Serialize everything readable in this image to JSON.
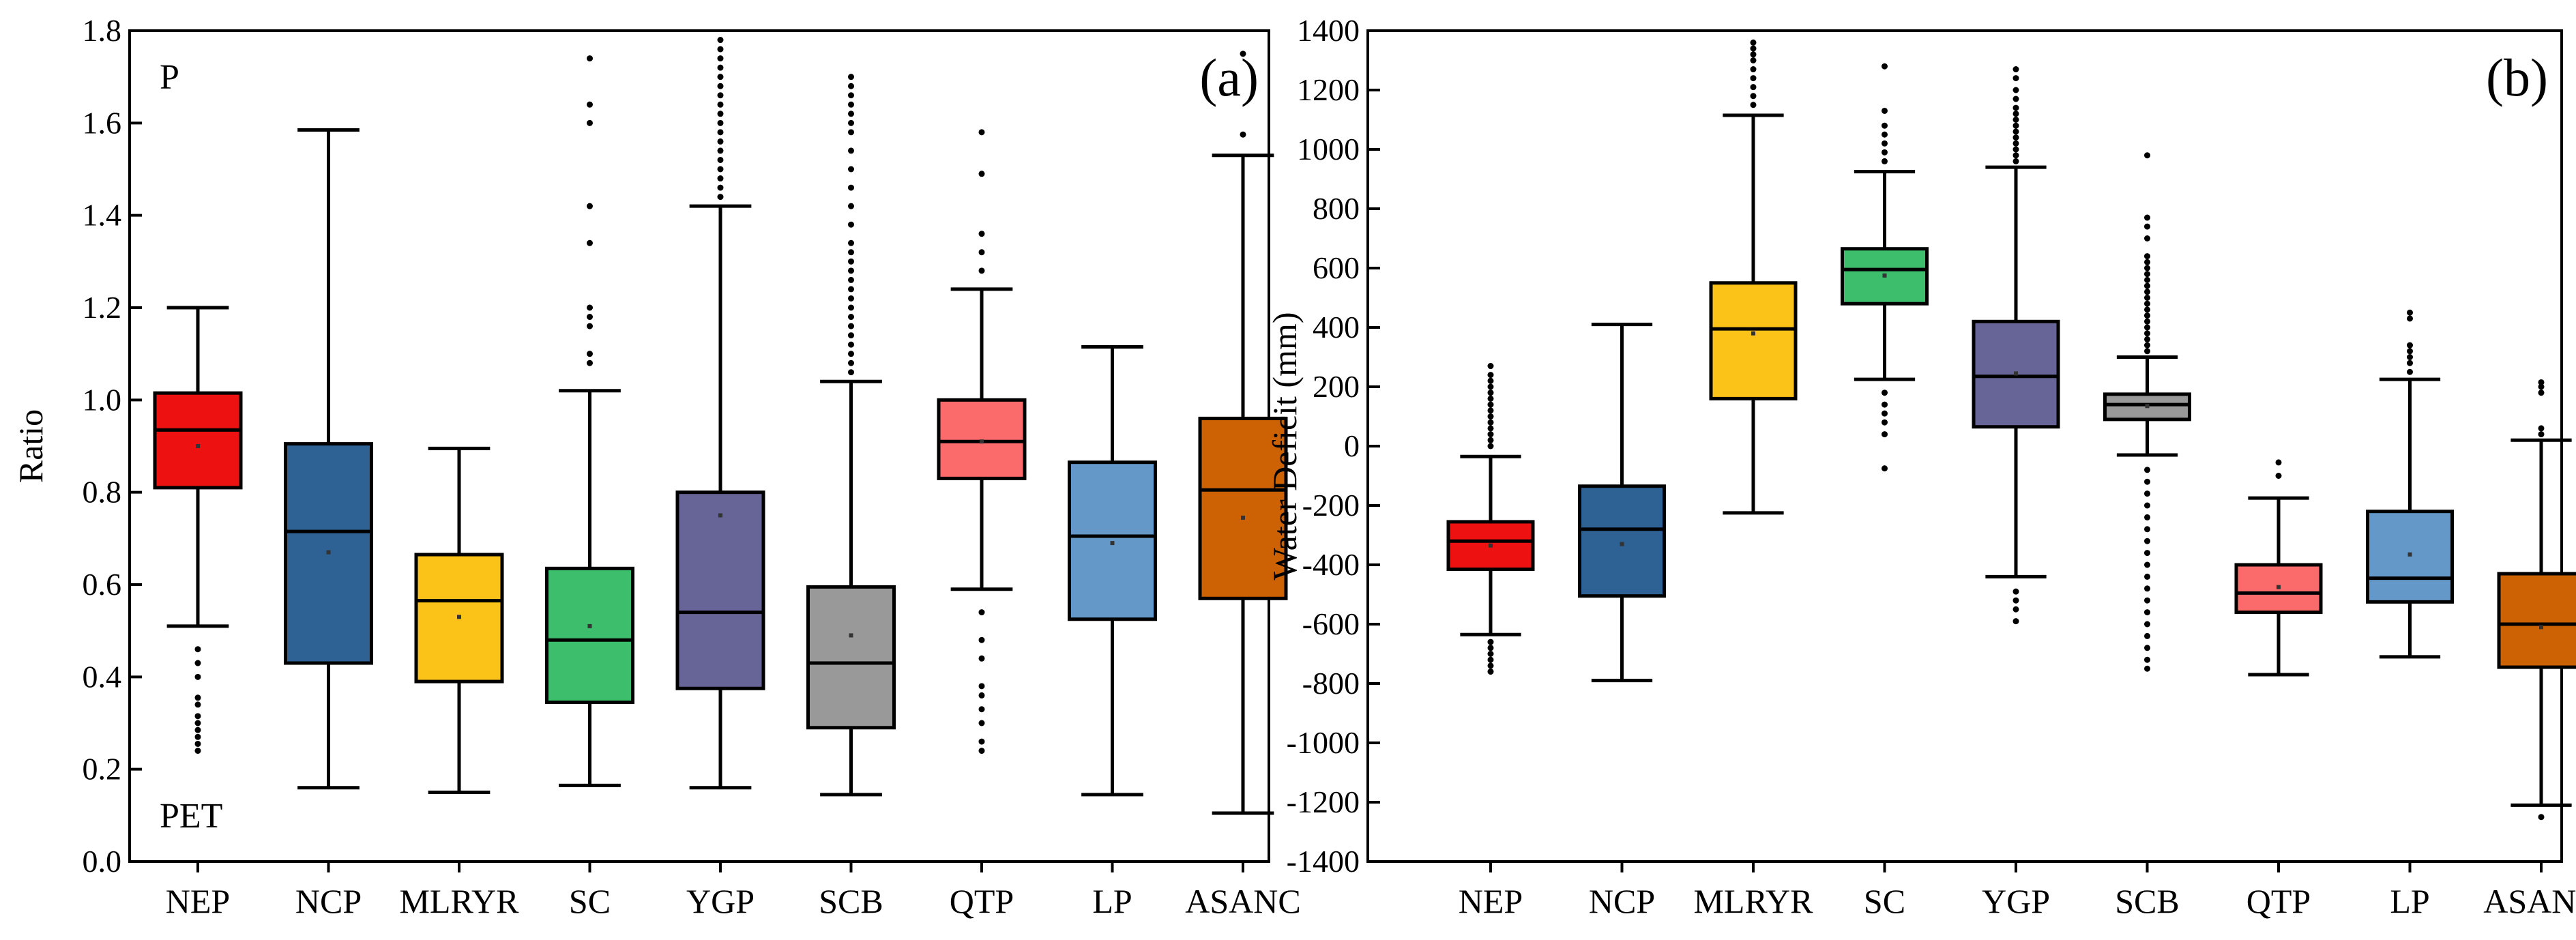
{
  "chart_data": [
    {
      "type": "box",
      "panel_label": "(a)",
      "title": "",
      "xlabel": "",
      "ylabel": "Ratio",
      "top_annotation": "P",
      "bottom_annotation": "PET",
      "ylim": [
        0.0,
        1.8
      ],
      "yticks": [
        0.0,
        0.2,
        0.4,
        0.6,
        0.8,
        1.0,
        1.2,
        1.4,
        1.6,
        1.8
      ],
      "ytick_labels": [
        "0.0",
        "0.2",
        "0.4",
        "0.6",
        "0.8",
        "1.0",
        "1.2",
        "1.4",
        "1.6",
        "1.8"
      ],
      "grid": false,
      "categories": [
        "NEP",
        "NCP",
        "MLRYR",
        "SC",
        "YGP",
        "SCB",
        "QTP",
        "LP",
        "ASANC"
      ],
      "boxes": [
        {
          "category": "NEP",
          "whisker_low": 0.51,
          "q1": 0.81,
          "median": 0.935,
          "q3": 1.015,
          "whisker_high": 1.2,
          "mean": 0.9,
          "color": "#ee1111",
          "outliers": [
            0.24,
            0.255,
            0.27,
            0.285,
            0.3,
            0.315,
            0.34,
            0.355,
            0.4,
            0.43,
            0.46
          ]
        },
        {
          "category": "NCP",
          "whisker_low": 0.16,
          "q1": 0.43,
          "median": 0.715,
          "q3": 0.905,
          "whisker_high": 1.585,
          "mean": 0.67,
          "color": "#2e6194",
          "outliers": []
        },
        {
          "category": "MLRYR",
          "whisker_low": 0.15,
          "q1": 0.39,
          "median": 0.565,
          "q3": 0.665,
          "whisker_high": 0.895,
          "mean": 0.53,
          "color": "#fbc218",
          "outliers": []
        },
        {
          "category": "SC",
          "whisker_low": 0.165,
          "q1": 0.345,
          "median": 0.48,
          "q3": 0.635,
          "whisker_high": 1.02,
          "mean": 0.51,
          "color": "#3dbe6c",
          "outliers": [
            1.08,
            1.1,
            1.16,
            1.18,
            1.2,
            1.34,
            1.42,
            1.6,
            1.64,
            1.74
          ]
        },
        {
          "category": "YGP",
          "whisker_low": 0.16,
          "q1": 0.375,
          "median": 0.54,
          "q3": 0.8,
          "whisker_high": 1.42,
          "mean": 0.75,
          "color": "#676597",
          "outliers": [
            1.44,
            1.46,
            1.48,
            1.5,
            1.52,
            1.54,
            1.56,
            1.58,
            1.6,
            1.62,
            1.64,
            1.66,
            1.68,
            1.7,
            1.72,
            1.74,
            1.76,
            1.78
          ]
        },
        {
          "category": "SCB",
          "whisker_low": 0.145,
          "q1": 0.29,
          "median": 0.43,
          "q3": 0.595,
          "whisker_high": 1.04,
          "mean": 0.49,
          "color": "#999999",
          "outliers": [
            1.06,
            1.08,
            1.1,
            1.12,
            1.14,
            1.16,
            1.18,
            1.2,
            1.22,
            1.24,
            1.26,
            1.28,
            1.3,
            1.32,
            1.34,
            1.38,
            1.42,
            1.46,
            1.5,
            1.54,
            1.58,
            1.6,
            1.62,
            1.64,
            1.66,
            1.68,
            1.7
          ]
        },
        {
          "category": "QTP",
          "whisker_low": 0.59,
          "q1": 0.83,
          "median": 0.91,
          "q3": 1.0,
          "whisker_high": 1.24,
          "mean": 0.91,
          "color": "#fb6b6b",
          "outliers": [
            0.24,
            0.26,
            0.3,
            0.33,
            0.36,
            0.38,
            0.44,
            0.48,
            0.54,
            1.28,
            1.32,
            1.36,
            1.49,
            1.58
          ]
        },
        {
          "category": "LP",
          "whisker_low": 0.145,
          "q1": 0.525,
          "median": 0.705,
          "q3": 0.865,
          "whisker_high": 1.115,
          "mean": 0.69,
          "color": "#6398c9",
          "outliers": []
        },
        {
          "category": "ASANC",
          "whisker_low": 0.105,
          "q1": 0.57,
          "median": 0.805,
          "q3": 0.96,
          "whisker_high": 1.53,
          "mean": 0.745,
          "color": "#cc6204",
          "outliers": [
            1.575,
            1.75
          ]
        }
      ]
    },
    {
      "type": "box",
      "panel_label": "(b)",
      "title": "",
      "xlabel": "",
      "ylabel": "Water Deficit (mm)",
      "ylim": [
        -1400,
        1400
      ],
      "yticks": [
        -1400,
        -1200,
        -1000,
        -800,
        -600,
        -400,
        -200,
        0,
        200,
        400,
        600,
        800,
        1000,
        1200,
        1400
      ],
      "ytick_labels": [
        "-1400",
        "-1200",
        "-1000",
        "-800",
        "-600",
        "-400",
        "-200",
        "0",
        "200",
        "400",
        "600",
        "800",
        "1000",
        "1200",
        "1400"
      ],
      "grid": false,
      "categories": [
        "NEP",
        "NCP",
        "MLRYR",
        "SC",
        "YGP",
        "SCB",
        "QTP",
        "LP",
        "ASANC"
      ],
      "boxes": [
        {
          "category": "NEP",
          "whisker_low": -635,
          "q1": -415,
          "median": -320,
          "q3": -255,
          "whisker_high": -35,
          "mean": -335,
          "color": "#ee1111",
          "outliers": [
            -760,
            -740,
            -720,
            -700,
            -680,
            -660,
            0,
            20,
            40,
            60,
            80,
            100,
            120,
            140,
            160,
            180,
            200,
            220,
            240,
            270
          ]
        },
        {
          "category": "NCP",
          "whisker_low": -790,
          "q1": -505,
          "median": -280,
          "q3": -135,
          "whisker_high": 410,
          "mean": -330,
          "color": "#2e6194",
          "outliers": []
        },
        {
          "category": "MLRYR",
          "whisker_low": -225,
          "q1": 160,
          "median": 395,
          "q3": 550,
          "whisker_high": 1115,
          "mean": 380,
          "color": "#fbc218",
          "outliers": [
            1150,
            1180,
            1210,
            1240,
            1270,
            1300,
            1320,
            1340,
            1360
          ]
        },
        {
          "category": "SC",
          "whisker_low": 225,
          "q1": 480,
          "median": 595,
          "q3": 665,
          "whisker_high": 925,
          "mean": 575,
          "color": "#3dbe6c",
          "outliers": [
            -75,
            40,
            80,
            110,
            140,
            180,
            960,
            990,
            1020,
            1050,
            1080,
            1130,
            1280
          ]
        },
        {
          "category": "YGP",
          "whisker_low": -440,
          "q1": 65,
          "median": 235,
          "q3": 420,
          "whisker_high": 940,
          "mean": 245,
          "color": "#676597",
          "outliers": [
            -590,
            -550,
            -520,
            -490,
            960,
            980,
            1000,
            1020,
            1040,
            1060,
            1080,
            1100,
            1120,
            1140,
            1170,
            1200,
            1240,
            1270
          ]
        },
        {
          "category": "SCB",
          "whisker_low": -30,
          "q1": 90,
          "median": 140,
          "q3": 175,
          "whisker_high": 300,
          "mean": 135,
          "color": "#999999",
          "outliers": [
            -750,
            -720,
            -680,
            -640,
            -600,
            -560,
            -520,
            -480,
            -440,
            -400,
            -360,
            -320,
            -280,
            -240,
            -200,
            -160,
            -120,
            -80,
            320,
            340,
            360,
            380,
            400,
            420,
            440,
            460,
            480,
            500,
            520,
            540,
            560,
            580,
            600,
            620,
            640,
            700,
            740,
            770,
            980
          ]
        },
        {
          "category": "QTP",
          "whisker_low": -770,
          "q1": -560,
          "median": -495,
          "q3": -400,
          "whisker_high": -175,
          "mean": -475,
          "color": "#fb6b6b",
          "outliers": [
            -100,
            -55
          ]
        },
        {
          "category": "LP",
          "whisker_low": -710,
          "q1": -525,
          "median": -445,
          "q3": -220,
          "whisker_high": 225,
          "mean": -365,
          "color": "#6398c9",
          "outliers": [
            250,
            280,
            300,
            320,
            340,
            430,
            450
          ]
        },
        {
          "category": "ASANC",
          "whisker_low": -1210,
          "q1": -745,
          "median": -600,
          "q3": -430,
          "whisker_high": 20,
          "mean": -610,
          "color": "#cc6204",
          "outliers": [
            -1250,
            40,
            60,
            180,
            200,
            215
          ]
        }
      ]
    }
  ]
}
